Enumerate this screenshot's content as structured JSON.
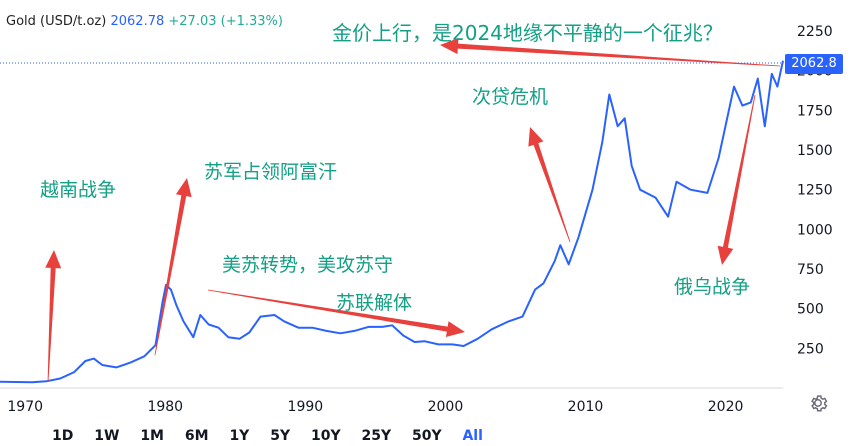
{
  "legend": {
    "symbol": "Gold (USD/t.oz)",
    "price": "2062.78",
    "change": "+27.03 (+1.33%)"
  },
  "last_price_tag": "2062.8",
  "annotations": {
    "title": "金价上行，是2024地缘不平静的一个征兆？",
    "vietnam": "越南战争",
    "afghanistan": "苏军占领阿富汗",
    "cold_war": "美苏转势，美攻苏守",
    "ussr_collapse": "苏联解体",
    "subprime": "次贷危机",
    "ukraine": "俄乌战争"
  },
  "timeframes": [
    "1D",
    "1W",
    "1M",
    "6M",
    "1Y",
    "5Y",
    "10Y",
    "25Y",
    "50Y",
    "All"
  ],
  "active_timeframe": "All",
  "colors": {
    "line": "#2962ff",
    "arrow": "#e8403c",
    "note": "#14a085",
    "axis_text": "#131722",
    "dotted": "#2962ff"
  },
  "chart_data": {
    "type": "line",
    "title": "",
    "xlabel": "",
    "ylabel": "",
    "x_ticks": [
      1970,
      1980,
      1990,
      2000,
      2010,
      2020
    ],
    "y_ticks": [
      250,
      500,
      750,
      1000,
      1250,
      1500,
      1750,
      2000,
      2250
    ],
    "xlim": [
      1968.2,
      2024.1
    ],
    "ylim": [
      0,
      2370
    ],
    "grid": false,
    "series": [
      {
        "name": "",
        "x": [
          1968.2,
          1970.5,
          1971.5,
          1972.5,
          1973.5,
          1974.3,
          1974.9,
          1975.5,
          1976.5,
          1977.5,
          1978.5,
          1979.3,
          1979.8,
          1980.05,
          1980.4,
          1980.8,
          1981.3,
          1982.0,
          1982.5,
          1983.1,
          1983.8,
          1984.5,
          1985.3,
          1986.0,
          1986.8,
          1987.8,
          1988.5,
          1989.5,
          1990.5,
          1991.5,
          1992.5,
          1993.5,
          1994.5,
          1995.5,
          1996.2,
          1997.0,
          1997.8,
          1998.5,
          1999.5,
          2000.5,
          2001.3,
          2002.3,
          2003.3,
          2004.5,
          2005.5,
          2006.4,
          2007.0,
          2007.8,
          2008.2,
          2008.8,
          2009.5,
          2010.5,
          2011.2,
          2011.7,
          2012.3,
          2012.8,
          2013.3,
          2013.9,
          2015.0,
          2015.9,
          2016.5,
          2017.5,
          2018.7,
          2019.5,
          2020.6,
          2021.2,
          2021.8,
          2022.3,
          2022.8,
          2023.3,
          2023.7,
          2024.1
        ],
        "y": [
          40,
          36,
          42,
          60,
          100,
          170,
          185,
          145,
          130,
          160,
          200,
          270,
          540,
          650,
          620,
          520,
          420,
          320,
          460,
          400,
          380,
          320,
          310,
          350,
          450,
          460,
          420,
          380,
          380,
          360,
          345,
          360,
          385,
          385,
          395,
          330,
          290,
          295,
          275,
          275,
          265,
          310,
          370,
          420,
          450,
          620,
          660,
          800,
          900,
          780,
          950,
          1250,
          1550,
          1850,
          1650,
          1700,
          1400,
          1250,
          1200,
          1080,
          1300,
          1250,
          1230,
          1450,
          1900,
          1780,
          1800,
          1950,
          1650,
          1980,
          1900,
          2062.8
        ]
      }
    ]
  }
}
